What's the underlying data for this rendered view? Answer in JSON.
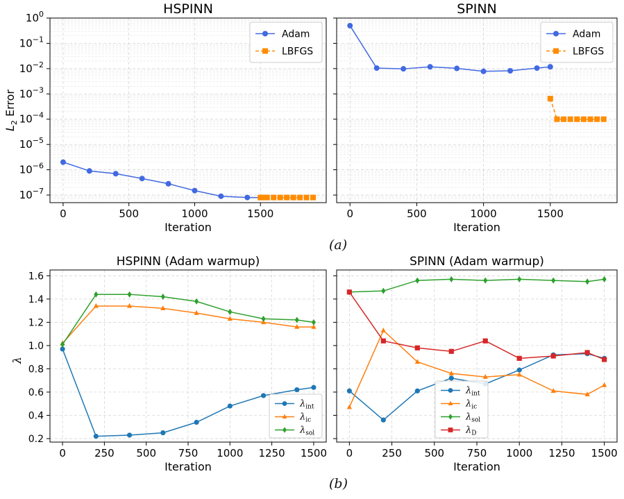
{
  "figure": {
    "caption_a": "(a)",
    "caption_b": "(b)"
  },
  "colors": {
    "adam": "#4169e1",
    "lbfgs": "#ff8c00",
    "int": "#1f77b4",
    "ic": "#ff7f0e",
    "sol": "#2ca02c",
    "D": "#d62728",
    "grid": "#cfcfcf"
  },
  "chart_data": [
    {
      "id": "a1",
      "type": "line",
      "title": "HSPINN",
      "xlabel": "Iteration",
      "ylabel": "L2 Error",
      "yscale": "log",
      "xlim": [
        -100,
        2000
      ],
      "ylim": [
        5e-08,
        1
      ],
      "xticks": [
        0,
        500,
        1000,
        1500
      ],
      "yticks": [
        1e-07,
        1e-06,
        1e-05,
        0.0001,
        0.001,
        0.01,
        0.1,
        1
      ],
      "grid": true,
      "minor_grid": true,
      "legend": "top-right",
      "series": [
        {
          "name": "Adam",
          "color": "#4169e1",
          "marker": "circle",
          "style": "solid",
          "x": [
            0,
            200,
            400,
            600,
            800,
            1000,
            1200,
            1400,
            1500
          ],
          "y": [
            2e-06,
            9e-07,
            7e-07,
            4.5e-07,
            2.8e-07,
            1.5e-07,
            9e-08,
            8e-08,
            8e-08
          ]
        },
        {
          "name": "LBFGS",
          "color": "#ff8c00",
          "marker": "square",
          "style": "dashed",
          "x": [
            1500,
            1525,
            1550,
            1600,
            1650,
            1700,
            1750,
            1800,
            1850,
            1900
          ],
          "y": [
            8e-08,
            8e-08,
            8e-08,
            8e-08,
            8e-08,
            8e-08,
            8e-08,
            8e-08,
            8e-08,
            8e-08
          ]
        }
      ]
    },
    {
      "id": "a2",
      "type": "line",
      "title": "SPINN",
      "xlabel": "Iteration",
      "ylabel": "",
      "yscale": "log",
      "xlim": [
        -100,
        2000
      ],
      "ylim": [
        5e-08,
        1
      ],
      "xticks": [
        0,
        500,
        1000,
        1500
      ],
      "yticks": [
        1e-07,
        1e-06,
        1e-05,
        0.0001,
        0.001,
        0.01,
        0.1,
        1
      ],
      "grid": true,
      "minor_grid": true,
      "legend": "top-right",
      "series": [
        {
          "name": "Adam",
          "color": "#4169e1",
          "marker": "circle",
          "style": "solid",
          "x": [
            0,
            200,
            400,
            600,
            800,
            1000,
            1200,
            1400,
            1500
          ],
          "y": [
            0.5,
            0.0105,
            0.0098,
            0.0118,
            0.0102,
            0.0078,
            0.0082,
            0.0105,
            0.0118
          ]
        },
        {
          "name": "LBFGS",
          "color": "#ff8c00",
          "marker": "square",
          "style": "dashed",
          "x": [
            1500,
            1550,
            1600,
            1650,
            1700,
            1750,
            1800,
            1850,
            1900
          ],
          "y": [
            0.00065,
            0.0001,
            0.0001,
            0.0001,
            0.0001,
            0.0001,
            0.0001,
            0.0001,
            0.0001
          ]
        }
      ]
    },
    {
      "id": "b1",
      "type": "line",
      "title": "HSPINN (Adam warmup)",
      "xlabel": "Iteration",
      "ylabel": "λ",
      "xlim": [
        -75,
        1575
      ],
      "ylim": [
        0.17,
        1.65
      ],
      "xticks": [
        0,
        250,
        500,
        750,
        1000,
        1250,
        1500
      ],
      "yticks": [
        0.2,
        0.4,
        0.6,
        0.8,
        1.0,
        1.2,
        1.4,
        1.6
      ],
      "grid": true,
      "legend": "bottom-right",
      "series": [
        {
          "name": "λint",
          "sym": "λ",
          "sub": "int",
          "color": "#1f77b4",
          "marker": "circle",
          "x": [
            0,
            200,
            400,
            600,
            800,
            1000,
            1200,
            1400,
            1500
          ],
          "y": [
            0.97,
            0.22,
            0.23,
            0.25,
            0.34,
            0.48,
            0.57,
            0.62,
            0.64
          ]
        },
        {
          "name": "λic",
          "sym": "λ",
          "sub": "ic",
          "color": "#ff7f0e",
          "marker": "triangle",
          "x": [
            0,
            200,
            400,
            600,
            800,
            1000,
            1200,
            1400,
            1500
          ],
          "y": [
            1.02,
            1.34,
            1.34,
            1.32,
            1.28,
            1.23,
            1.2,
            1.16,
            1.16
          ]
        },
        {
          "name": "λsol",
          "sym": "λ",
          "sub": "sol",
          "color": "#2ca02c",
          "marker": "diamond",
          "x": [
            0,
            200,
            400,
            600,
            800,
            1000,
            1200,
            1400,
            1500
          ],
          "y": [
            1.01,
            1.44,
            1.44,
            1.42,
            1.38,
            1.29,
            1.23,
            1.22,
            1.2
          ]
        }
      ]
    },
    {
      "id": "b2",
      "type": "line",
      "title": "SPINN (Adam warmup)",
      "xlabel": "Iteration",
      "ylabel": "",
      "xlim": [
        -75,
        1575
      ],
      "ylim": [
        0.17,
        1.65
      ],
      "xticks": [
        0,
        250,
        500,
        750,
        1000,
        1250,
        1500
      ],
      "yticks": [
        0.2,
        0.4,
        0.6,
        0.8,
        1.0,
        1.2,
        1.4,
        1.6
      ],
      "grid": true,
      "legend": "bottom-center",
      "series": [
        {
          "name": "λint",
          "sym": "λ",
          "sub": "int",
          "color": "#1f77b4",
          "marker": "circle",
          "x": [
            0,
            200,
            400,
            600,
            800,
            1000,
            1200,
            1400,
            1500
          ],
          "y": [
            0.61,
            0.36,
            0.61,
            0.72,
            0.67,
            0.79,
            0.92,
            0.93,
            0.89
          ]
        },
        {
          "name": "λic",
          "sym": "λ",
          "sub": "ic",
          "color": "#ff7f0e",
          "marker": "triangle",
          "x": [
            0,
            200,
            400,
            600,
            800,
            1000,
            1200,
            1400,
            1500
          ],
          "y": [
            0.47,
            1.13,
            0.86,
            0.76,
            0.73,
            0.75,
            0.61,
            0.58,
            0.66
          ]
        },
        {
          "name": "λsol",
          "sym": "λ",
          "sub": "sol",
          "color": "#2ca02c",
          "marker": "diamond",
          "x": [
            0,
            200,
            400,
            600,
            800,
            1000,
            1200,
            1400,
            1500
          ],
          "y": [
            1.46,
            1.47,
            1.56,
            1.57,
            1.56,
            1.57,
            1.56,
            1.55,
            1.57
          ]
        },
        {
          "name": "λD",
          "sym": "λ",
          "sub": "D",
          "color": "#d62728",
          "marker": "square",
          "x": [
            0,
            200,
            400,
            600,
            800,
            1000,
            1200,
            1400,
            1500
          ],
          "y": [
            1.46,
            1.04,
            0.98,
            0.95,
            1.04,
            0.89,
            0.91,
            0.94,
            0.88
          ]
        }
      ]
    }
  ]
}
